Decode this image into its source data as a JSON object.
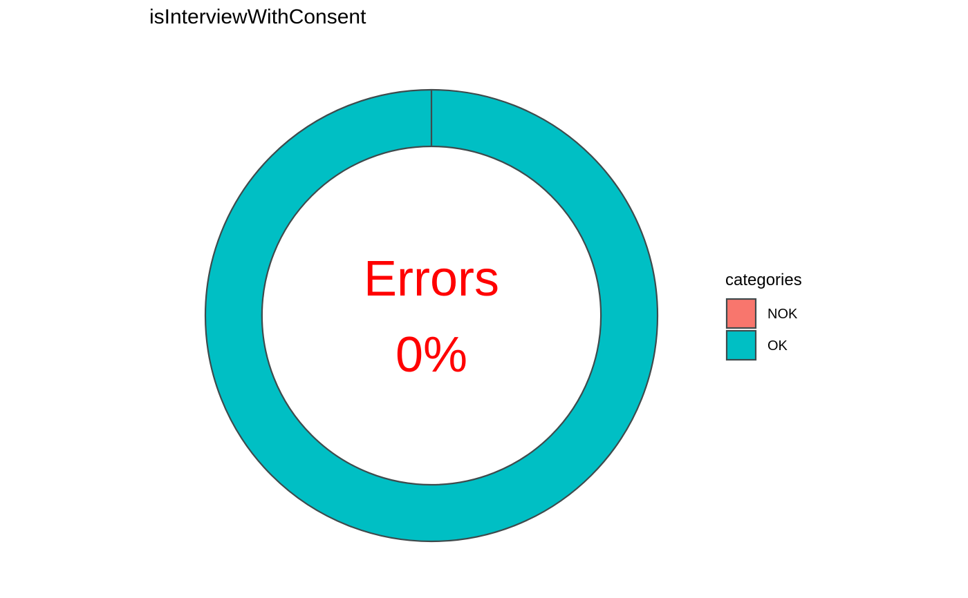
{
  "chart_data": {
    "type": "pie",
    "title": "isInterviewWithConsent",
    "donut": true,
    "categories": [
      "NOK",
      "OK"
    ],
    "values": [
      0,
      100
    ],
    "colors": [
      "#F8766D",
      "#00BFC4"
    ],
    "outline_color": "#3f4a4c",
    "center_text": {
      "line1": "Errors",
      "line2": "0%",
      "color": "#FF0000"
    },
    "legend": {
      "title": "categories",
      "position": "right",
      "items": [
        {
          "label": "NOK",
          "color": "#F8766D"
        },
        {
          "label": "OK",
          "color": "#00BFC4"
        }
      ]
    }
  }
}
